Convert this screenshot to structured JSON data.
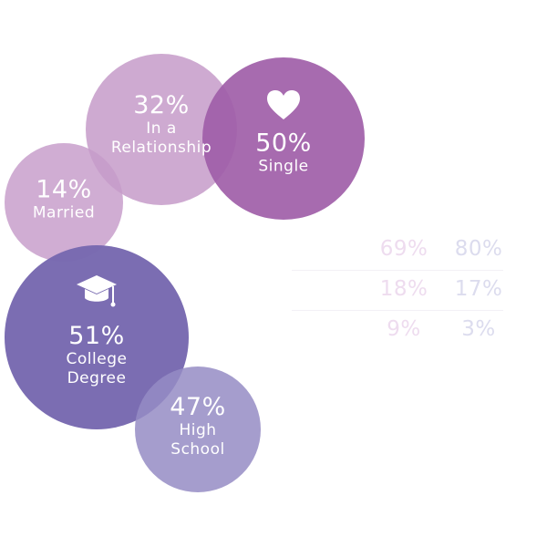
{
  "bubbles": [
    {
      "id": "in-relationship",
      "percent": "32%",
      "label_lines": [
        "In a",
        "Relationship"
      ],
      "value": 32,
      "color": "#c69bc9"
    },
    {
      "id": "single",
      "percent": "50%",
      "label_lines": [
        "Single"
      ],
      "value": 50,
      "color": "#a05ea8",
      "icon": "heart-icon"
    },
    {
      "id": "married",
      "percent": "14%",
      "label_lines": [
        "Married"
      ],
      "value": 14,
      "color": "#c69bc9"
    },
    {
      "id": "college-degree",
      "percent": "51%",
      "label_lines": [
        "College",
        "Degree"
      ],
      "value": 51,
      "color": "#7768b0",
      "icon": "graduation-cap-icon"
    },
    {
      "id": "high-school",
      "percent": "47%",
      "label_lines": [
        "High",
        "School"
      ],
      "value": 47,
      "color": "#958cc4"
    }
  ],
  "faded_stats": {
    "rows": [
      [
        "69%",
        "80%"
      ],
      [
        "18%",
        "17%"
      ],
      [
        "9%",
        "3%"
      ]
    ],
    "colors": [
      "#eedcef",
      "#dcdcee"
    ]
  }
}
